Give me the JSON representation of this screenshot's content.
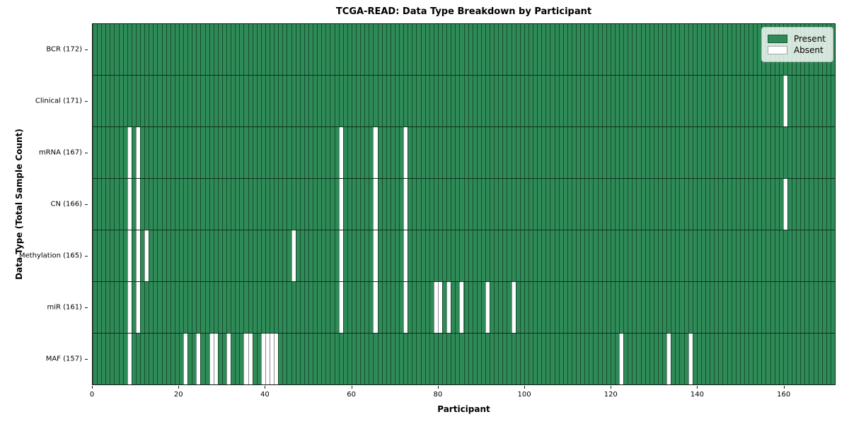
{
  "title": "TCGA-READ: Data Type Breakdown by Participant",
  "x_axis_label": "Participant",
  "y_axis_label": "Data Type (Total Sample Count)",
  "legend": {
    "present_label": "Present",
    "absent_label": "Absent"
  },
  "colors": {
    "present": "#2e8b57",
    "absent": "#ffffff"
  },
  "chart_data": {
    "type": "heatmap",
    "title": "TCGA-READ: Data Type Breakdown by Participant",
    "xlabel": "Participant",
    "ylabel": "Data Type (Total Sample Count)",
    "n_participants": 172,
    "xlim": [
      0,
      172
    ],
    "x_ticks": [
      0,
      20,
      40,
      60,
      80,
      100,
      120,
      140,
      160
    ],
    "grid": "cell-edges",
    "legend_position": "upper right",
    "legend_entries": [
      "Present",
      "Absent"
    ],
    "rows": [
      {
        "name": "BCR",
        "label": "BCR (172)",
        "total": 172,
        "absent_participants": []
      },
      {
        "name": "Clinical",
        "label": "Clinical (171)",
        "total": 171,
        "absent_participants": [
          160
        ]
      },
      {
        "name": "mRNA",
        "label": "mRNA (167)",
        "total": 167,
        "absent_participants": [
          8,
          10,
          57,
          65,
          72
        ]
      },
      {
        "name": "CN",
        "label": "CN (166)",
        "total": 166,
        "absent_participants": [
          8,
          10,
          57,
          65,
          72,
          160
        ]
      },
      {
        "name": "Methylation",
        "label": "Methylation (165)",
        "total": 165,
        "absent_participants": [
          8,
          10,
          12,
          46,
          57,
          65,
          72
        ]
      },
      {
        "name": "miR",
        "label": "miR (161)",
        "total": 161,
        "absent_participants": [
          8,
          10,
          57,
          65,
          72,
          79,
          80,
          82,
          85,
          91,
          97
        ]
      },
      {
        "name": "MAF",
        "label": "MAF (157)",
        "total": 157,
        "absent_participants": [
          8,
          21,
          24,
          27,
          28,
          31,
          35,
          36,
          39,
          40,
          41,
          42,
          122,
          133,
          138
        ]
      }
    ]
  }
}
